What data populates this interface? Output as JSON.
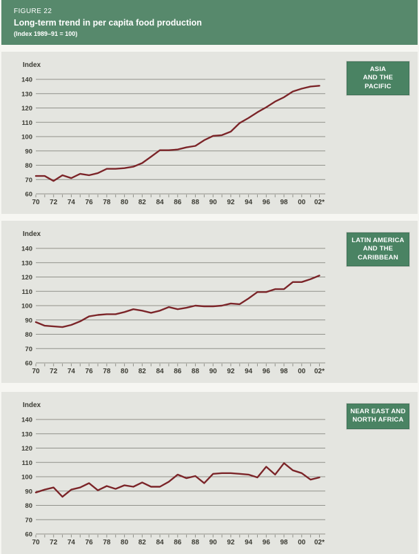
{
  "header": {
    "figure_label": "FIGURE 22",
    "title": "Long-term trend in per capita food production",
    "subtitle": "(Index 1989–91 = 100)"
  },
  "colors": {
    "header_green": "#57896c",
    "badge_green": "#4a8363",
    "panel_background": "#e4e5e0",
    "line_maroon": "#7b2428",
    "grid_gray": "#8f9089",
    "label_text": "#3c3c34",
    "page_background": "#f6f6f2"
  },
  "chart_data": [
    {
      "type": "line",
      "region_label_lines": [
        "ASIA",
        "AND THE PACIFIC"
      ],
      "axis_label": "Index",
      "ylim": [
        60,
        140
      ],
      "y_ticks": [
        140,
        130,
        120,
        110,
        100,
        90,
        80,
        70,
        60
      ],
      "grid": true,
      "legend": "none",
      "x_tick_labels": [
        "70",
        "72",
        "74",
        "76",
        "78",
        "80",
        "82",
        "84",
        "86",
        "88",
        "90",
        "92",
        "94",
        "96",
        "98",
        "00",
        "02*"
      ],
      "years": [
        1970,
        1971,
        1972,
        1973,
        1974,
        1975,
        1976,
        1977,
        1978,
        1979,
        1980,
        1981,
        1982,
        1983,
        1984,
        1985,
        1986,
        1987,
        1988,
        1989,
        1990,
        1991,
        1992,
        1993,
        1994,
        1995,
        1996,
        1997,
        1998,
        1999,
        2000,
        2001,
        2002
      ],
      "series": [
        {
          "values": [
            72.5,
            72.5,
            69,
            73,
            71,
            74,
            73,
            74.5,
            77.5,
            77.5,
            78,
            79,
            81.5,
            86,
            90.5,
            90.5,
            91,
            92.5,
            93.5,
            97.5,
            100.5,
            101,
            103.5,
            109.5,
            113,
            117,
            120.5,
            124.5,
            127.5,
            131.5,
            133.5,
            135,
            135.5
          ]
        }
      ]
    },
    {
      "type": "line",
      "region_label_lines": [
        "LATIN AMERICA",
        "AND THE",
        "CARIBBEAN"
      ],
      "axis_label": "Index",
      "ylim": [
        60,
        140
      ],
      "y_ticks": [
        140,
        130,
        120,
        110,
        100,
        90,
        80,
        70,
        60
      ],
      "grid": true,
      "legend": "none",
      "x_tick_labels": [
        "70",
        "72",
        "74",
        "76",
        "78",
        "80",
        "82",
        "84",
        "86",
        "88",
        "90",
        "92",
        "94",
        "96",
        "98",
        "00",
        "02*"
      ],
      "years": [
        1970,
        1971,
        1972,
        1973,
        1974,
        1975,
        1976,
        1977,
        1978,
        1979,
        1980,
        1981,
        1982,
        1983,
        1984,
        1985,
        1986,
        1987,
        1988,
        1989,
        1990,
        1991,
        1992,
        1993,
        1994,
        1995,
        1996,
        1997,
        1998,
        1999,
        2000,
        2001,
        2002
      ],
      "series": [
        {
          "values": [
            88.5,
            86,
            85.5,
            85,
            86.5,
            89,
            92.5,
            93.5,
            94,
            94,
            95.5,
            97.5,
            96.5,
            95,
            96.5,
            99,
            97.5,
            98.5,
            100,
            99.5,
            99.5,
            100,
            101.5,
            101,
            105,
            109.5,
            109.5,
            111.5,
            111.5,
            116.5,
            116.5,
            118.5,
            121
          ]
        }
      ]
    },
    {
      "type": "line",
      "region_label_lines": [
        "NEAR EAST AND",
        "NORTH AFRICA"
      ],
      "axis_label": "Index",
      "ylim": [
        60,
        140
      ],
      "y_ticks": [
        140,
        130,
        120,
        110,
        100,
        90,
        80,
        70,
        60
      ],
      "grid": true,
      "legend": "none",
      "x_tick_labels": [
        "70",
        "72",
        "74",
        "76",
        "78",
        "80",
        "82",
        "84",
        "86",
        "88",
        "90",
        "92",
        "94",
        "96",
        "98",
        "00",
        "02*"
      ],
      "years": [
        1970,
        1971,
        1972,
        1973,
        1974,
        1975,
        1976,
        1977,
        1978,
        1979,
        1980,
        1981,
        1982,
        1983,
        1984,
        1985,
        1986,
        1987,
        1988,
        1989,
        1990,
        1991,
        1992,
        1993,
        1994,
        1995,
        1996,
        1997,
        1998,
        1999,
        2000,
        2001,
        2002
      ],
      "series": [
        {
          "values": [
            89,
            91,
            92.5,
            86,
            91,
            92.5,
            95.5,
            90.5,
            93.5,
            91.5,
            94,
            93,
            96,
            93,
            93,
            96.5,
            101.5,
            99,
            100.5,
            95.5,
            102,
            102.5,
            102.5,
            102,
            101.5,
            99.5,
            107,
            101.5,
            109.5,
            104.5,
            102.5,
            98,
            99.5
          ]
        }
      ]
    }
  ]
}
